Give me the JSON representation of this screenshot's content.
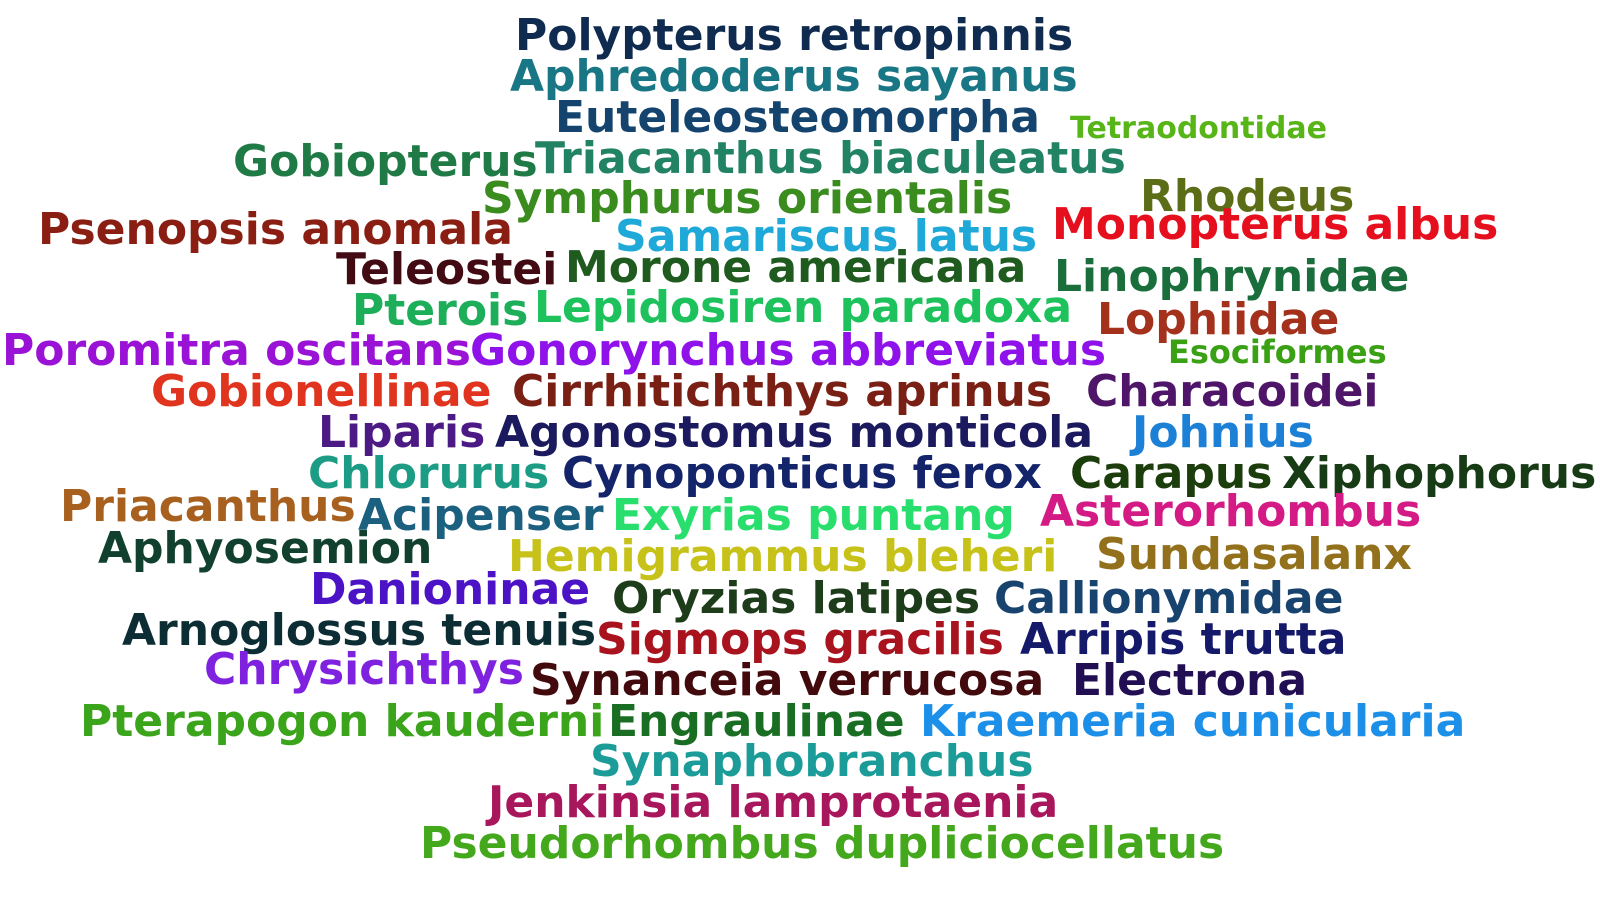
{
  "words": [
    {
      "text": "Polypterus retropinnis",
      "color": "#0f2b4f"
    },
    {
      "text": "Aphredoderus sayanus",
      "color": "#187685"
    },
    {
      "text": "Euteleosteomorpha",
      "color": "#14446e"
    },
    {
      "text": "Tetraodontidae",
      "color": "#57b517"
    },
    {
      "text": "Gobiopterus",
      "color": "#1f7a46"
    },
    {
      "text": "Triacanthus biaculeatus",
      "color": "#218264"
    },
    {
      "text": "Symphurus orientalis",
      "color": "#3a8c1e"
    },
    {
      "text": "Rhodeus",
      "color": "#5c6d18"
    },
    {
      "text": "Psenopsis anomala",
      "color": "#8b1e13"
    },
    {
      "text": "Samariscus latus",
      "color": "#1ea9d9"
    },
    {
      "text": "Monopterus albus",
      "color": "#e60f1e"
    },
    {
      "text": "Teleostei",
      "color": "#420a12"
    },
    {
      "text": "Morone americana",
      "color": "#1f5a1f"
    },
    {
      "text": "Linophrynidae",
      "color": "#1a6e3c"
    },
    {
      "text": "Pterois",
      "color": "#1cae58"
    },
    {
      "text": "Lepidosiren paradoxa",
      "color": "#1dc25d"
    },
    {
      "text": "Lophiidae",
      "color": "#a3311c"
    },
    {
      "text": "Poromitra oscitans",
      "color": "#9a12d6"
    },
    {
      "text": "Gonorynchus abbreviatus",
      "color": "#8e12e9"
    },
    {
      "text": "Esociformes",
      "color": "#3aa014"
    },
    {
      "text": "Gobionellinae",
      "color": "#e0341e"
    },
    {
      "text": "Cirrhitichthys aprinus",
      "color": "#7a1f14"
    },
    {
      "text": "Characoidei",
      "color": "#4e1569"
    },
    {
      "text": "Liparis",
      "color": "#4b1a84"
    },
    {
      "text": "Agonostomus monticola",
      "color": "#1c1a5e"
    },
    {
      "text": "Johnius",
      "color": "#1c80d6"
    },
    {
      "text": "Chlorurus",
      "color": "#1c9c84"
    },
    {
      "text": "Cynoponticus ferox",
      "color": "#13246a"
    },
    {
      "text": "Carapus",
      "color": "#1c3d0c"
    },
    {
      "text": "Xiphophorus",
      "color": "#173b14"
    },
    {
      "text": "Priacanthus",
      "color": "#a8601f"
    },
    {
      "text": "Acipenser",
      "color": "#1c607f"
    },
    {
      "text": "Exyrias puntang",
      "color": "#28de6c"
    },
    {
      "text": "Asterorhombus",
      "color": "#d41b85"
    },
    {
      "text": "Aphyosemion",
      "color": "#11402e"
    },
    {
      "text": "Hemigrammus bleheri",
      "color": "#c6c219"
    },
    {
      "text": "Sundasalanx",
      "color": "#92701c"
    },
    {
      "text": "Danioninae",
      "color": "#4c13c6"
    },
    {
      "text": "Oryzias latipes",
      "color": "#1c3c1a"
    },
    {
      "text": "Callionymidae",
      "color": "#17436e"
    },
    {
      "text": "Arnoglossus tenuis",
      "color": "#0c2d33"
    },
    {
      "text": "Sigmops gracilis",
      "color": "#a8131e"
    },
    {
      "text": "Arripis trutta",
      "color": "#15196a"
    },
    {
      "text": "Chrysichthys",
      "color": "#7f22e0"
    },
    {
      "text": "Synanceia verrucosa",
      "color": "#420a0c"
    },
    {
      "text": "Electrona",
      "color": "#220e52"
    },
    {
      "text": "Pterapogon kauderni",
      "color": "#3aa41a"
    },
    {
      "text": "Engraulinae",
      "color": "#1a6e24"
    },
    {
      "text": "Kraemeria cunicularia",
      "color": "#1c90e8"
    },
    {
      "text": "Synaphobranchus",
      "color": "#1c9c99"
    },
    {
      "text": "Jenkinsia lamprotaenia",
      "color": "#a8165c"
    },
    {
      "text": "Pseudorhombus dupliciocellatus",
      "color": "#44a81c"
    }
  ]
}
